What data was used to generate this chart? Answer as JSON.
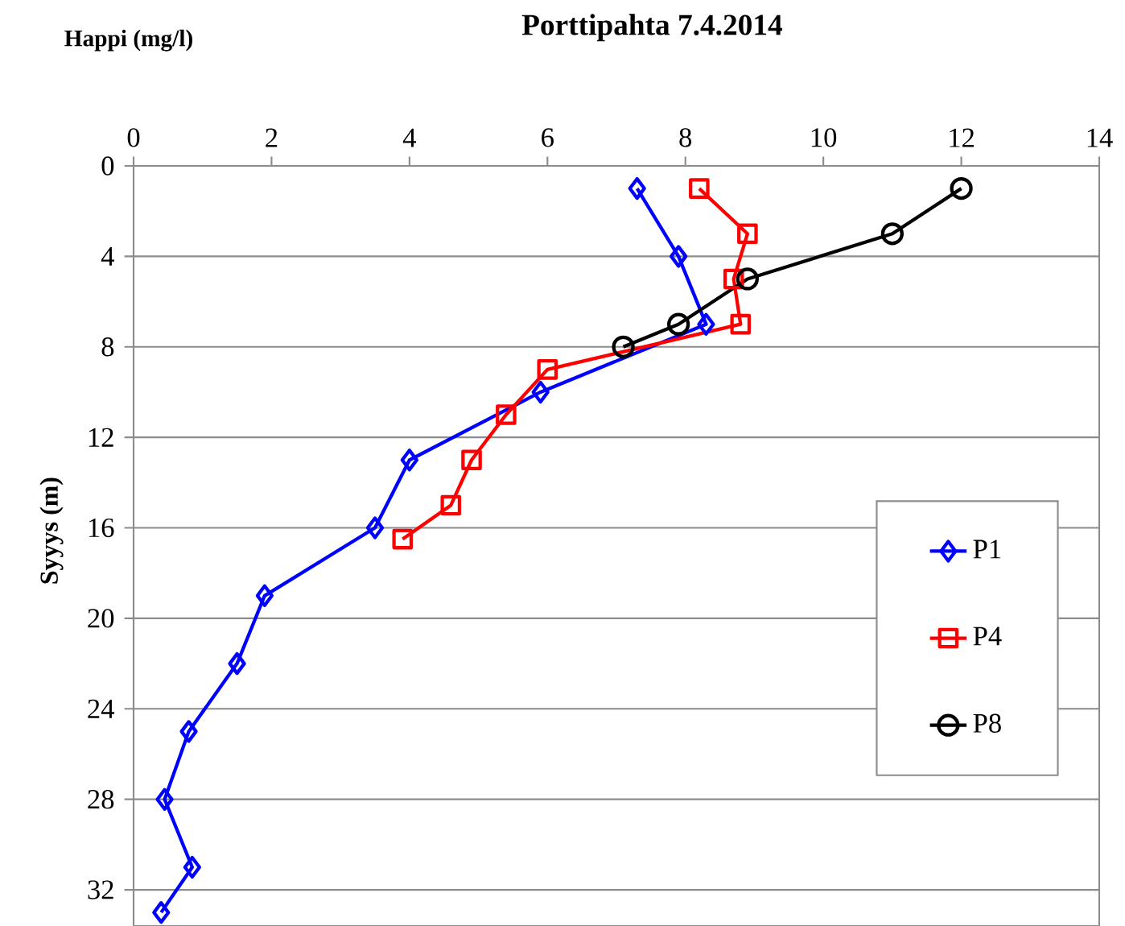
{
  "chart_data": {
    "type": "line",
    "title": "Porttipahta 7.4.2014",
    "xlabel": "Happi (mg/l)",
    "ylabel": "Syyys (m)",
    "xlim": [
      0,
      14
    ],
    "xticks": [
      0,
      2,
      4,
      6,
      8,
      10,
      12,
      14
    ],
    "ylim": [
      33.6,
      0
    ],
    "yticks": [
      0,
      4,
      8,
      12,
      16,
      20,
      24,
      28,
      32
    ],
    "grid": "y",
    "legend": "right",
    "line_style": "solid",
    "series": [
      {
        "name": "P1",
        "color": "#0000ff",
        "marker": "diamond",
        "x": [
          7.3,
          7.9,
          8.3,
          5.9,
          4.0,
          3.5,
          1.9,
          1.5,
          0.8,
          0.45,
          0.85,
          0.4
        ],
        "values": [
          1,
          4,
          7,
          10,
          13,
          16,
          19,
          22,
          25,
          28,
          31,
          33
        ]
      },
      {
        "name": "P4",
        "color": "#ff0000",
        "marker": "square",
        "x": [
          8.2,
          8.9,
          8.7,
          8.8,
          6.0,
          5.4,
          4.9,
          4.6,
          3.9
        ],
        "values": [
          1,
          3,
          5,
          7,
          9,
          11,
          13,
          15,
          16.5
        ]
      },
      {
        "name": "P8",
        "color": "#000000",
        "marker": "circle",
        "x": [
          12,
          11,
          8.9,
          7.9,
          7.1
        ],
        "values": [
          1,
          3,
          5,
          7,
          8
        ]
      }
    ]
  }
}
